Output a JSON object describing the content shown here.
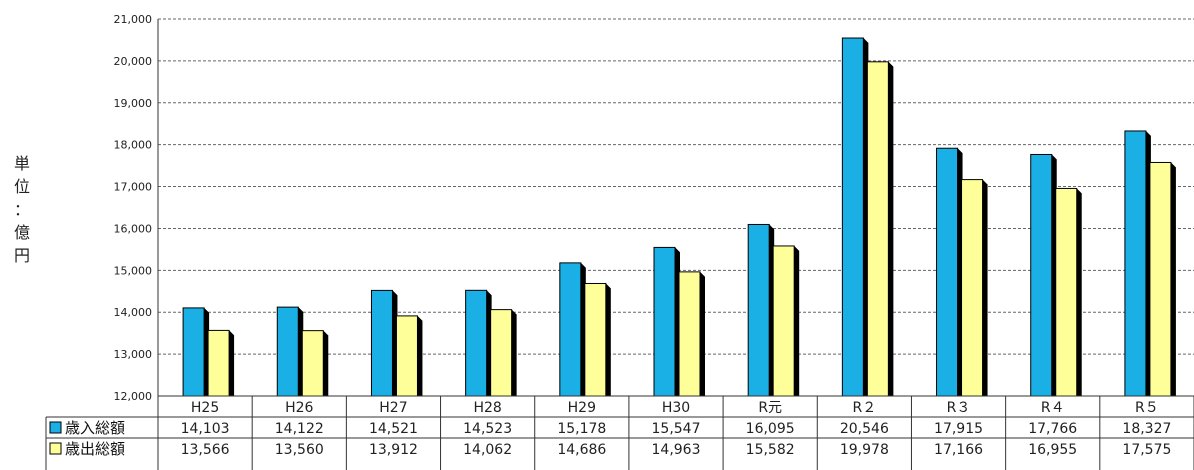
{
  "chart_data": {
    "type": "bar",
    "ylabel": "単位：億円",
    "ylabel_chars": [
      "単",
      "位",
      "：",
      "億",
      "円"
    ],
    "ylim": [
      12000,
      21000
    ],
    "yticks": [
      12000,
      13000,
      14000,
      15000,
      16000,
      17000,
      18000,
      19000,
      20000,
      21000
    ],
    "ytick_labels": [
      "12,000",
      "13,000",
      "14,000",
      "15,000",
      "16,000",
      "17,000",
      "18,000",
      "19,000",
      "20,000",
      "21,000"
    ],
    "grid": true,
    "legend": "data-table",
    "categories": [
      "H25",
      "H26",
      "H27",
      "H28",
      "H29",
      "H30",
      "R元",
      "R２",
      "R３",
      "R４",
      "R５"
    ],
    "series": [
      {
        "name": "歳入総額",
        "color": "#1ab0e6",
        "values": [
          14103,
          14122,
          14521,
          14523,
          15178,
          15547,
          16095,
          20546,
          17915,
          17766,
          18327
        ],
        "labels": [
          "14,103",
          "14,122",
          "14,521",
          "14,523",
          "15,178",
          "15,547",
          "16,095",
          "20,546",
          "17,915",
          "17,766",
          "18,327"
        ]
      },
      {
        "name": "歳出総額",
        "color": "#ffff99",
        "values": [
          13566,
          13560,
          13912,
          14062,
          14686,
          14963,
          15582,
          19978,
          17166,
          16955,
          17575
        ],
        "labels": [
          "13,566",
          "13,560",
          "13,912",
          "14,062",
          "14,686",
          "14,963",
          "15,582",
          "19,978",
          "17,166",
          "16,955",
          "17,575"
        ]
      }
    ]
  }
}
